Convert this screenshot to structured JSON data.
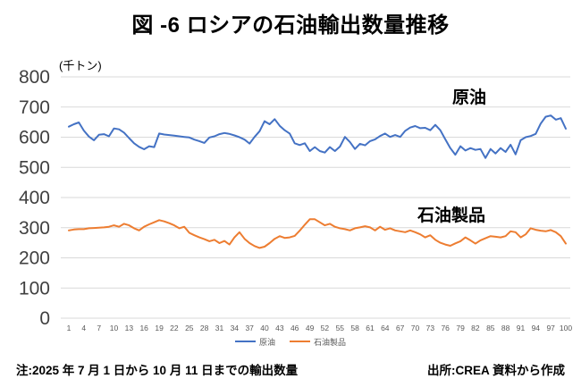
{
  "title": "図 -6 ロシアの石油輸出数量推移",
  "footer": {
    "note": "注:2025 年 7 月 1 日から 10 月 11 日までの輸出数量",
    "source": "出所:CREA 資料から作成"
  },
  "chart_data": {
    "type": "line",
    "title": "図 -6 ロシアの石油輸出数量推移",
    "unit_label": "(千トン)",
    "ylabel": "千トン",
    "ylim": [
      0,
      800
    ],
    "y_tick_step": 100,
    "x_range": [
      1,
      100
    ],
    "x_tick_labels": [
      1,
      4,
      7,
      10,
      13,
      16,
      19,
      22,
      25,
      28,
      31,
      34,
      37,
      40,
      43,
      46,
      49,
      52,
      55,
      58,
      61,
      64,
      67,
      70,
      73,
      76,
      79,
      82,
      85,
      88,
      91,
      94,
      97,
      100
    ],
    "grid": "horizontal",
    "gridline_color": "#D9D9D9",
    "legend_position": "bottom",
    "axis_label_color": "#404040",
    "tick_label_color": "#595959",
    "annotations": {
      "crude": "原油",
      "products": "石油製品"
    },
    "series": [
      {
        "name": "原油",
        "color": "#4472C4",
        "values": [
          635,
          643,
          649,
          622,
          602,
          590,
          608,
          610,
          603,
          629,
          626,
          615,
          597,
          580,
          568,
          560,
          570,
          567,
          612,
          609,
          607,
          605,
          603,
          601,
          599,
          592,
          587,
          581,
          599,
          603,
          610,
          614,
          611,
          606,
          600,
          592,
          579,
          601,
          620,
          653,
          643,
          660,
          638,
          623,
          612,
          580,
          574,
          580,
          554,
          567,
          554,
          549,
          567,
          554,
          569,
          601,
          584,
          561,
          578,
          573,
          587,
          593,
          604,
          612,
          601,
          607,
          601,
          621,
          632,
          637,
          630,
          631,
          623,
          641,
          623,
          593,
          564,
          542,
          570,
          556,
          564,
          558,
          561,
          531,
          561,
          546,
          564,
          551,
          575,
          543,
          590,
          600,
          604,
          611,
          645,
          668,
          672,
          658,
          663,
          628
        ]
      },
      {
        "name": "石油製品",
        "color": "#ED7D31",
        "values": [
          291,
          294,
          295,
          295,
          298,
          299,
          300,
          301,
          303,
          308,
          303,
          313,
          308,
          298,
          291,
          303,
          311,
          318,
          325,
          321,
          315,
          308,
          298,
          303,
          283,
          275,
          268,
          262,
          255,
          260,
          249,
          256,
          244,
          268,
          285,
          263,
          249,
          239,
          233,
          237,
          249,
          263,
          272,
          266,
          268,
          273,
          290,
          310,
          328,
          328,
          318,
          308,
          313,
          303,
          298,
          295,
          291,
          298,
          301,
          305,
          301,
          291,
          303,
          293,
          298,
          291,
          288,
          285,
          291,
          285,
          278,
          268,
          275,
          260,
          250,
          244,
          240,
          248,
          255,
          268,
          258,
          247,
          258,
          265,
          272,
          270,
          268,
          272,
          288,
          285,
          268,
          278,
          298,
          293,
          290,
          288,
          292,
          285,
          272,
          247
        ]
      }
    ]
  }
}
